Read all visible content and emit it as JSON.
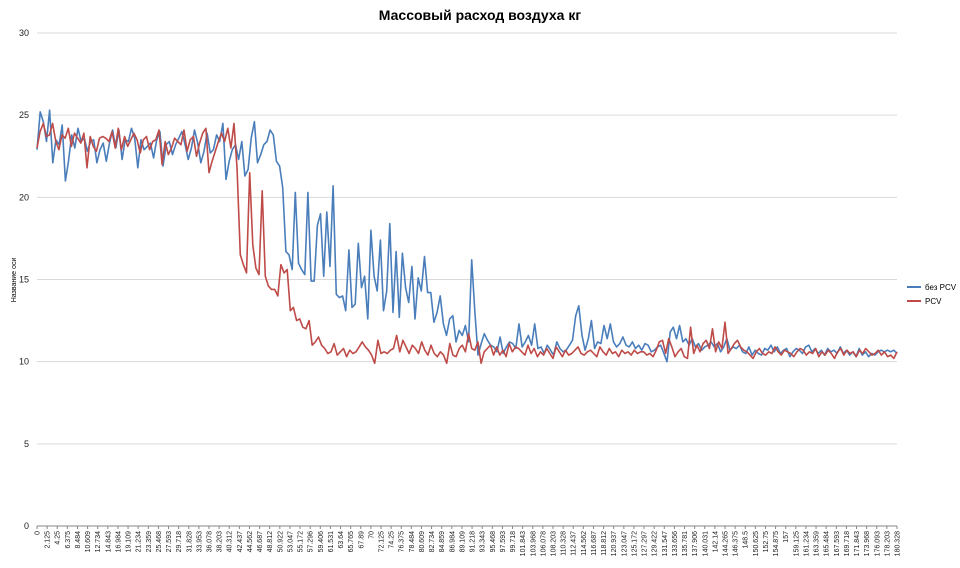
{
  "chart_data": {
    "type": "line",
    "title": "Массовый расход воздуха кг",
    "xlabel": "",
    "ylabel": "Название оси",
    "ylim": [
      0,
      30
    ],
    "yticks": [
      0,
      5,
      10,
      15,
      20,
      25,
      30
    ],
    "grid": "horizontal",
    "legend_position": "right",
    "x_tick_labels": [
      "0",
      "2.125",
      "4.25",
      "6.375",
      "8.484",
      "10.609",
      "12.734",
      "14.843",
      "16.984",
      "19.109",
      "21.234",
      "23.359",
      "25.468",
      "27.593",
      "29.718",
      "31.828",
      "33.953",
      "36.078",
      "38.203",
      "40.312",
      "42.437",
      "44.562",
      "46.687",
      "48.812",
      "50.922",
      "53.047",
      "55.172",
      "57.296",
      "59.406",
      "61.531",
      "63.64",
      "65.765",
      "67.89",
      "70",
      "72.125",
      "74.25",
      "76.375",
      "78.484",
      "80.609",
      "82.734",
      "84.859",
      "86.984",
      "89.109",
      "91.218",
      "93.343",
      "95.468",
      "97.593",
      "99.718",
      "101.843",
      "103.968",
      "106.078",
      "108.203",
      "110.328",
      "112.437",
      "114.562",
      "116.687",
      "118.812",
      "120.937",
      "123.047",
      "125.172",
      "127.297",
      "129.422",
      "131.547",
      "133.656",
      "135.781",
      "137.906",
      "140.031",
      "142.14",
      "144.265",
      "146.375",
      "148.5",
      "150.625",
      "152.75",
      "154.875",
      "157",
      "159.125",
      "161.234",
      "163.359",
      "165.484",
      "167.593",
      "169.718",
      "171.843",
      "173.968",
      "176.093",
      "178.203",
      "180.328"
    ],
    "series": [
      {
        "name": "без PCV",
        "color": "#4a7ebb",
        "values": [
          22.9,
          25.2,
          24.6,
          23.4,
          25.3,
          22.1,
          23.5,
          23.2,
          24.4,
          21.0,
          22.2,
          23.8,
          23.0,
          24.2,
          23.4,
          23.6,
          22.8,
          23.4,
          23.5,
          22.1,
          22.9,
          23.3,
          22.2,
          23.3,
          24.1,
          23.0,
          24.1,
          22.3,
          23.5,
          23.4,
          24.2,
          23.6,
          21.8,
          23.5,
          22.9,
          23.1,
          23.3,
          22.4,
          23.5,
          24.0,
          21.9,
          23.2,
          23.4,
          22.6,
          23.2,
          23.6,
          24.0,
          23.2,
          22.3,
          23.0,
          24.1,
          23.3,
          22.1,
          22.8,
          23.9,
          22.7,
          22.9,
          23.8,
          23.4,
          24.5,
          21.1,
          22.2,
          22.9,
          23.2,
          22.3,
          23.4,
          21.3,
          21.7,
          23.6,
          24.6,
          22.1,
          22.6,
          23.2,
          23.4,
          24.1,
          23.8,
          22.2,
          21.9,
          20.6,
          16.7,
          16.5,
          15.6,
          20.3,
          16.0,
          15.6,
          15.3,
          20.3,
          14.9,
          14.9,
          18.3,
          19.0,
          15.2,
          19.1,
          15.8,
          20.7,
          14.1,
          13.9,
          14.0,
          13.1,
          16.8,
          13.3,
          13.5,
          17.2,
          14.5,
          15.2,
          12.6,
          18.0,
          15.2,
          14.3,
          17.4,
          13.1,
          14.3,
          18.4,
          13.0,
          16.7,
          12.7,
          16.6,
          14.5,
          13.6,
          15.8,
          12.6,
          15.1,
          14.3,
          16.4,
          14.2,
          14.2,
          12.4,
          13.0,
          14.0,
          12.3,
          11.6,
          12.6,
          12.8,
          11.2,
          11.9,
          11.6,
          12.2,
          11.2,
          16.2,
          13.0,
          10.4,
          11.1,
          11.7,
          11.3,
          11.0,
          10.9,
          10.6,
          11.5,
          10.5,
          10.9,
          11.2,
          11.1,
          10.8,
          12.3,
          10.9,
          11.2,
          11.6,
          11.0,
          12.3,
          10.8,
          10.9,
          10.5,
          11.0,
          10.7,
          10.4,
          11.2,
          10.8,
          10.6,
          10.7,
          11.0,
          11.3,
          12.8,
          13.4,
          11.6,
          10.7,
          11.4,
          12.5,
          10.8,
          11.2,
          11.1,
          12.2,
          11.4,
          12.3,
          11.2,
          10.9,
          11.1,
          11.5,
          11.0,
          10.9,
          11.2,
          10.8,
          11.0,
          10.7,
          11.1,
          11.0,
          10.6,
          10.7,
          10.9,
          11.0,
          10.5,
          10.0,
          11.8,
          12.1,
          11.4,
          12.2,
          11.2,
          11.4,
          11.0,
          11.4,
          10.9,
          11.1,
          10.7,
          10.9,
          11.0,
          11.2,
          10.9,
          11.1,
          10.6,
          10.9,
          11.4,
          10.7,
          10.9,
          10.8,
          11.0,
          10.6,
          10.5,
          10.9,
          10.4,
          10.7,
          10.5,
          10.4,
          10.8,
          10.7,
          11.0,
          10.6,
          10.9,
          10.5,
          10.7,
          10.8,
          10.3,
          10.6,
          10.8,
          10.7,
          10.5,
          10.9,
          11.0,
          10.6,
          10.8,
          10.5,
          10.7,
          10.4,
          10.8,
          10.6,
          10.7,
          10.5,
          10.9,
          10.5,
          10.7,
          10.4,
          10.6,
          10.3,
          10.8,
          10.4,
          10.6,
          10.3,
          10.5,
          10.4,
          10.6,
          10.7,
          10.6,
          10.7,
          10.6,
          10.7,
          10.5
        ]
      },
      {
        "name": "PCV",
        "color": "#be4b48",
        "values": [
          23.0,
          24.0,
          24.5,
          23.7,
          23.8,
          24.5,
          23.4,
          22.9,
          23.8,
          23.6,
          24.2,
          23.1,
          23.9,
          23.6,
          23.3,
          23.9,
          21.8,
          23.7,
          23.1,
          22.8,
          23.6,
          23.7,
          23.6,
          23.4,
          24.0,
          23.0,
          24.2,
          22.9,
          23.7,
          23.1,
          23.5,
          23.9,
          23.5,
          22.7,
          23.5,
          23.7,
          22.9,
          23.4,
          23.5,
          24.1,
          22.0,
          23.4,
          22.6,
          23.0,
          23.6,
          23.4,
          23.2,
          24.1,
          22.8,
          23.5,
          23.7,
          22.5,
          23.3,
          23.9,
          24.2,
          21.5,
          22.2,
          22.8,
          23.4,
          23.9,
          23.4,
          24.2,
          23.0,
          24.5,
          21.7,
          16.5,
          15.9,
          15.4,
          21.5,
          17.1,
          15.7,
          15.3,
          20.4,
          15.2,
          14.6,
          14.4,
          14.4,
          14.0,
          15.9,
          15.4,
          15.6,
          13.1,
          13.3,
          12.5,
          12.6,
          12.1,
          12.0,
          12.5,
          11.0,
          11.2,
          11.5,
          11.0,
          10.8,
          10.5,
          10.6,
          11.1,
          10.4,
          10.6,
          10.8,
          10.3,
          10.7,
          10.5,
          10.6,
          10.9,
          11.2,
          10.9,
          10.7,
          10.4,
          9.9,
          11.3,
          10.5,
          10.6,
          10.5,
          10.7,
          10.8,
          11.6,
          10.6,
          11.3,
          10.9,
          10.5,
          11.0,
          10.8,
          10.5,
          11.2,
          10.7,
          10.4,
          11.0,
          10.5,
          10.3,
          10.6,
          10.4,
          9.9,
          11.1,
          10.4,
          10.3,
          10.8,
          11.0,
          10.6,
          11.7,
          10.8,
          10.7,
          11.2,
          9.9,
          10.6,
          10.8,
          11.0,
          10.4,
          10.9,
          10.4,
          10.7,
          10.3,
          11.1,
          10.6,
          10.9,
          10.8,
          10.6,
          10.4,
          11.0,
          10.5,
          10.8,
          10.3,
          10.6,
          10.4,
          10.8,
          10.5,
          10.2,
          10.9,
          10.6,
          10.3,
          10.7,
          10.4,
          10.5,
          10.7,
          10.9,
          10.5,
          10.4,
          10.6,
          10.7,
          10.5,
          10.3,
          10.9,
          10.6,
          10.4,
          10.8,
          10.5,
          10.6,
          10.3,
          10.7,
          10.5,
          10.6,
          10.4,
          10.7,
          10.5,
          10.6,
          10.6,
          10.4,
          10.5,
          10.3,
          10.7,
          11.2,
          11.3,
          10.5,
          11.4,
          10.9,
          10.3,
          10.6,
          10.8,
          10.3,
          10.2,
          12.1,
          10.5,
          11.0,
          10.6,
          11.1,
          11.3,
          10.8,
          12.0,
          10.6,
          11.2,
          10.8,
          12.4,
          10.5,
          10.8,
          11.1,
          11.3,
          10.9,
          10.7,
          10.6,
          10.4,
          10.2,
          10.6,
          10.8,
          10.5,
          10.4,
          10.6,
          10.5,
          10.9,
          10.6,
          10.4,
          10.7,
          10.6,
          10.5,
          10.3,
          10.6,
          10.8,
          10.7,
          10.4,
          10.6,
          10.5,
          10.8,
          10.3,
          10.6,
          10.4,
          10.7,
          10.5,
          10.2,
          10.6,
          10.8,
          10.4,
          10.7,
          10.5,
          10.6,
          10.3,
          10.7,
          10.5,
          10.8,
          10.6,
          10.4,
          10.5,
          10.7,
          10.4,
          10.6,
          10.3,
          10.4,
          10.2,
          10.6
        ]
      }
    ]
  }
}
